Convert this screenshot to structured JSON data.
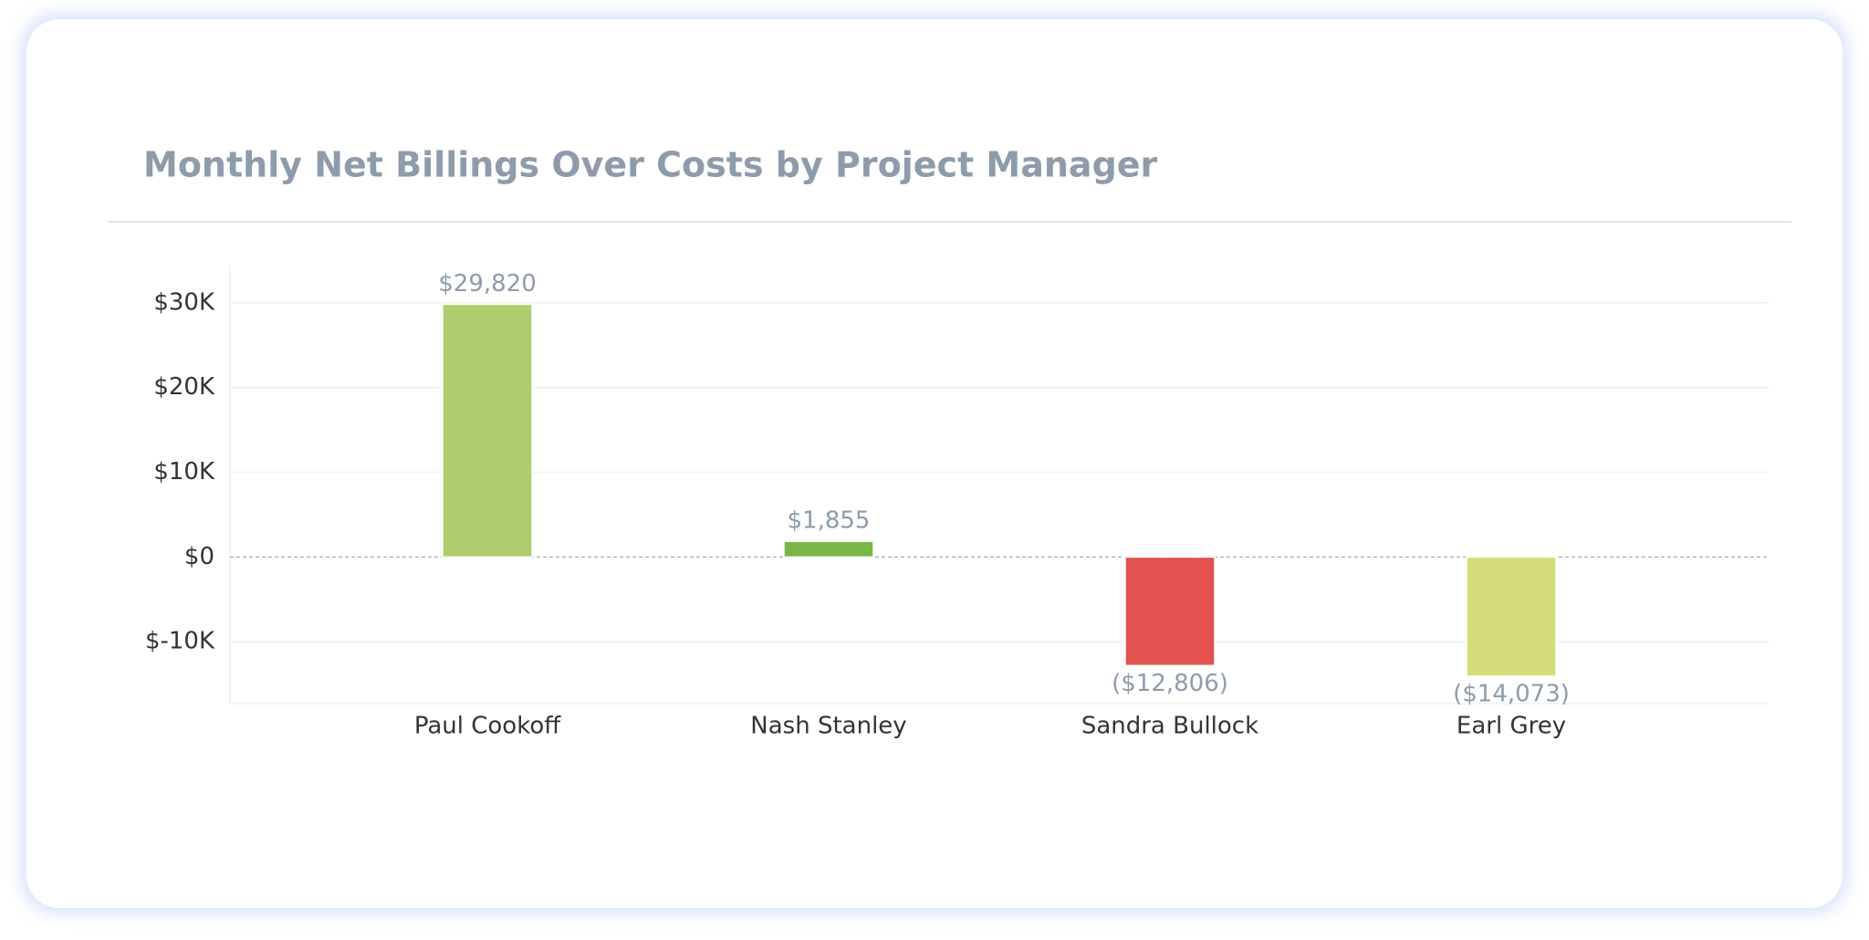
{
  "chart_data": {
    "type": "bar",
    "title": "Monthly Net Billings Over Costs by Project Manager",
    "categories": [
      "Paul Cookoff",
      "Nash Stanley",
      "Sandra Bullock",
      "Earl Grey"
    ],
    "values": [
      29820,
      1855,
      -12806,
      -14073
    ],
    "value_labels": [
      "$29,820",
      "$1,855",
      "($12,806)",
      "($14,073)"
    ],
    "colors": [
      "#aecd6c",
      "#7ab648",
      "#e35250",
      "#d5dd7a"
    ],
    "ylim": [
      -17300,
      34500
    ],
    "yticks": [
      {
        "value": -10000,
        "label": "$-10K"
      },
      {
        "value": 0,
        "label": "$0"
      },
      {
        "value": 10000,
        "label": "$10K"
      },
      {
        "value": 20000,
        "label": "$20K"
      },
      {
        "value": 30000,
        "label": "$30K"
      }
    ],
    "grid": true
  }
}
